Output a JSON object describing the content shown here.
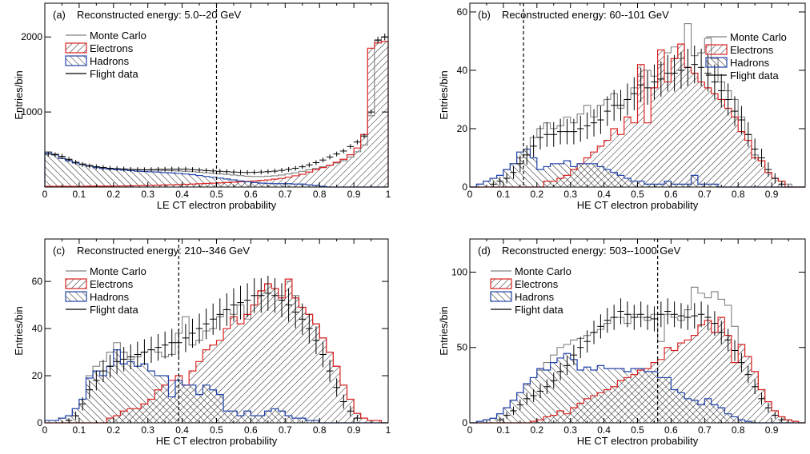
{
  "colors": {
    "mc": "#808080",
    "electrons": "#dd2222",
    "hadrons": "#2244aa",
    "flight": "#000000",
    "hatch": "#000000"
  },
  "chart_data": [
    {
      "type": "histogram",
      "panel_label": "(a)",
      "title": "Reconstructed energy: 5.0--20 GeV",
      "xlabel": "LE CT electron probability",
      "ylabel": "Entries/bin",
      "xlim": [
        0,
        1
      ],
      "ylim": [
        0,
        2450
      ],
      "xticks": [
        "0",
        "0.1",
        "0.2",
        "0.3",
        "0.4",
        "0.5",
        "0.6",
        "0.7",
        "0.8",
        "0.9",
        "1"
      ],
      "yticks": [
        {
          "value": 1000,
          "label": "1000"
        },
        {
          "value": 2000,
          "label": "2000"
        }
      ],
      "cut": 0.5,
      "legend": [
        "Monte Carlo",
        "Electrons",
        "Hadrons",
        "Flight data"
      ],
      "bin_width": 0.02,
      "series": {
        "Monte Carlo": [
          470,
          440,
          390,
          360,
          330,
          310,
          290,
          270,
          260,
          250,
          245,
          240,
          235,
          230,
          228,
          225,
          225,
          220,
          218,
          215,
          210,
          205,
          198,
          190,
          182,
          175,
          168,
          160,
          152,
          145,
          140,
          140,
          145,
          150,
          160,
          175,
          190,
          210,
          230,
          250,
          270,
          290,
          320,
          350,
          400,
          470,
          560,
          950,
          1950,
          2000
        ],
        "Electrons": [
          10,
          10,
          10,
          10,
          10,
          10,
          12,
          12,
          12,
          12,
          14,
          14,
          16,
          18,
          20,
          22,
          25,
          28,
          30,
          33,
          36,
          40,
          44,
          48,
          52,
          56,
          60,
          65,
          70,
          75,
          80,
          88,
          95,
          105,
          115,
          130,
          150,
          170,
          200,
          230,
          260,
          290,
          330,
          370,
          430,
          520,
          700,
          1850,
          1920,
          1940
        ],
        "Hadrons": [
          460,
          430,
          380,
          350,
          320,
          300,
          278,
          258,
          248,
          238,
          232,
          226,
          219,
          212,
          208,
          203,
          200,
          192,
          188,
          182,
          174,
          165,
          154,
          142,
          130,
          119,
          108,
          95,
          82,
          70,
          60,
          52,
          50,
          45,
          45,
          45,
          40,
          40,
          30,
          20,
          10,
          0,
          0,
          0,
          0,
          0,
          0,
          0,
          0,
          0
        ],
        "Flight data": [
          440,
          430,
          410,
          370,
          330,
          300,
          280,
          270,
          260,
          250,
          245,
          240,
          235,
          232,
          230,
          232,
          235,
          236,
          238,
          238,
          238,
          232,
          226,
          220,
          215,
          210,
          205,
          200,
          196,
          194,
          196,
          200,
          205,
          212,
          222,
          235,
          250,
          270,
          295,
          325,
          360,
          400,
          440,
          480,
          540,
          600,
          680,
          1000,
          1960,
          2000
        ]
      }
    },
    {
      "type": "histogram",
      "panel_label": "(b)",
      "title": "Reconstructed energy: 60--101 GeV",
      "xlabel": "HE CT electron probability",
      "ylabel": "Entries/bin",
      "xlim": [
        0,
        1
      ],
      "ylim": [
        0,
        63
      ],
      "xticks": [
        "0",
        "0.1",
        "0.2",
        "0.3",
        "0.4",
        "0.5",
        "0.6",
        "0.7",
        "0.8",
        "0.9",
        ""
      ],
      "yticks": [
        {
          "value": 0,
          "label": "0"
        },
        {
          "value": 20,
          "label": "20"
        },
        {
          "value": 40,
          "label": "40"
        },
        {
          "value": 60,
          "label": "60"
        }
      ],
      "cut": 0.16,
      "legend": [
        "Monte Carlo",
        "Electrons",
        "Hadrons",
        "Flight data"
      ],
      "bin_width": 0.02,
      "series": {
        "Monte Carlo": [
          0,
          1,
          2,
          3,
          4,
          6,
          8,
          10,
          13,
          17,
          20,
          22,
          20,
          21,
          24,
          22,
          25,
          28,
          24,
          28,
          30,
          32,
          27,
          30,
          34,
          38,
          40,
          38,
          42,
          46,
          48,
          44,
          56,
          45,
          46,
          51,
          44,
          36,
          33,
          30,
          24,
          18,
          11,
          9,
          5,
          3,
          2,
          1,
          0,
          0
        ],
        "Electrons": [
          0,
          0,
          0,
          0,
          0,
          0,
          0,
          0,
          0,
          0,
          0,
          2,
          2,
          3,
          4,
          6,
          8,
          10,
          12,
          14,
          16,
          20,
          18,
          24,
          22,
          42,
          22,
          34,
          47,
          36,
          44,
          49,
          41,
          39,
          36,
          34,
          32,
          30,
          27,
          24,
          19,
          16,
          10,
          9,
          5,
          3,
          2,
          0,
          0,
          0
        ],
        "Hadrons": [
          0,
          1,
          2,
          3,
          4,
          6,
          8,
          12,
          13,
          10,
          6,
          7,
          8,
          8,
          9,
          7,
          8,
          8,
          8,
          7,
          6,
          5,
          4,
          3,
          2,
          2,
          1,
          1,
          1,
          2,
          1,
          1,
          1,
          4,
          1,
          1,
          1,
          0,
          0,
          0,
          0,
          0,
          0,
          0,
          0,
          0,
          0,
          0,
          0,
          0
        ],
        "Flight data": [
          null,
          null,
          null,
          1,
          2,
          3,
          5,
          8,
          11,
          14,
          17,
          18,
          18,
          19,
          19,
          19,
          20,
          21,
          22,
          23,
          26,
          28,
          28,
          30,
          32,
          35,
          34,
          36,
          37,
          39,
          39,
          40,
          41,
          42,
          41,
          39,
          36,
          33,
          30,
          26,
          23,
          18,
          13,
          10,
          6,
          3,
          1,
          null,
          null,
          null
        ]
      }
    },
    {
      "type": "histogram",
      "panel_label": "(c)",
      "title": "Reconstructed energy: 210--346 GeV",
      "xlabel": "HE CT electron probability",
      "ylabel": "Entries/bin",
      "xlim": [
        0,
        1
      ],
      "ylim": [
        0,
        78
      ],
      "xticks": [
        "0",
        "0.1",
        "0.2",
        "0.3",
        "0.4",
        "0.5",
        "0.6",
        "0.7",
        "0.8",
        "0.9",
        "1"
      ],
      "yticks": [
        {
          "value": 0,
          "label": "0"
        },
        {
          "value": 20,
          "label": "20"
        },
        {
          "value": 40,
          "label": "40"
        },
        {
          "value": 60,
          "label": "60"
        }
      ],
      "cut": 0.39,
      "legend": [
        "Monte Carlo",
        "Electrons",
        "Hadrons",
        "Flight data"
      ],
      "bin_width": 0.02,
      "series": {
        "Monte Carlo": [
          1,
          1,
          2,
          3,
          6,
          10,
          20,
          24,
          26,
          30,
          34,
          30,
          27,
          28,
          30,
          31,
          30,
          28,
          29,
          38,
          45,
          33,
          35,
          39,
          40,
          45,
          48,
          46,
          50,
          44,
          50,
          56,
          59,
          57,
          54,
          60,
          54,
          49,
          46,
          42,
          36,
          30,
          24,
          16,
          10,
          4,
          2,
          1,
          1,
          0
        ],
        "Electrons": [
          0,
          0,
          0,
          0,
          0,
          0,
          0,
          0,
          0,
          2,
          3,
          5,
          6,
          6,
          8,
          10,
          14,
          16,
          18,
          20,
          16,
          22,
          26,
          31,
          33,
          35,
          40,
          45,
          42,
          46,
          50,
          56,
          59,
          57,
          53,
          61,
          53,
          49,
          46,
          42,
          36,
          30,
          24,
          16,
          10,
          4,
          2,
          1,
          1,
          0
        ],
        "Hadrons": [
          1,
          1,
          2,
          3,
          6,
          10,
          19,
          22,
          20,
          24,
          31,
          25,
          26,
          24,
          25,
          22,
          20,
          20,
          11,
          18,
          16,
          16,
          12,
          16,
          14,
          12,
          5,
          5,
          3,
          5,
          3,
          3,
          5,
          6,
          5,
          3,
          2,
          2,
          1,
          1,
          0,
          0,
          0,
          0,
          0,
          0,
          0,
          0,
          0,
          0
        ],
        "Flight data": [
          null,
          null,
          null,
          1,
          3,
          8,
          14,
          18,
          22,
          24,
          26,
          27,
          28,
          29,
          30,
          31,
          32,
          33,
          34,
          34,
          36,
          38,
          40,
          42,
          44,
          46,
          48,
          50,
          51,
          52,
          54,
          54,
          55,
          54,
          52,
          50,
          47,
          44,
          40,
          35,
          29,
          22,
          15,
          9,
          5,
          2,
          null,
          null,
          null,
          null
        ]
      }
    },
    {
      "type": "histogram",
      "panel_label": "(d)",
      "title": "Reconstructed energy: 503--1000 GeV",
      "xlabel": "HE CT electron probability",
      "ylabel": "Entries/bin",
      "xlim": [
        0,
        1
      ],
      "ylim": [
        0,
        122
      ],
      "xticks": [
        "0",
        "0.1",
        "0.2",
        "0.3",
        "0.4",
        "0.5",
        "0.6",
        "0.7",
        "0.8",
        "0.9",
        ""
      ],
      "yticks": [
        {
          "value": 0,
          "label": "0"
        },
        {
          "value": 50,
          "label": "50"
        },
        {
          "value": 100,
          "label": "100"
        }
      ],
      "cut": 0.56,
      "legend": [
        "Monte Carlo",
        "Electrons",
        "Hadrons",
        "Flight data"
      ],
      "bin_width": 0.02,
      "series": {
        "Monte Carlo": [
          0,
          1,
          2,
          3,
          6,
          10,
          15,
          20,
          25,
          30,
          35,
          40,
          45,
          50,
          52,
          55,
          56,
          58,
          60,
          62,
          66,
          70,
          70,
          66,
          72,
          70,
          68,
          72,
          54,
          72,
          70,
          68,
          75,
          90,
          86,
          83,
          87,
          82,
          78,
          64,
          52,
          44,
          34,
          22,
          14,
          8,
          4,
          2,
          1,
          0
        ],
        "Electrons": [
          0,
          0,
          0,
          0,
          0,
          0,
          0,
          0,
          0,
          1,
          2,
          4,
          5,
          8,
          6,
          10,
          13,
          16,
          18,
          20,
          22,
          24,
          28,
          30,
          32,
          35,
          36,
          40,
          42,
          50,
          48,
          53,
          55,
          58,
          65,
          68,
          60,
          70,
          58,
          40,
          52,
          44,
          34,
          22,
          14,
          8,
          4,
          2,
          1,
          0
        ],
        "Hadrons": [
          0,
          1,
          2,
          3,
          6,
          10,
          15,
          20,
          26,
          30,
          36,
          35,
          40,
          43,
          46,
          42,
          35,
          37,
          35,
          38,
          36,
          36,
          36,
          34,
          36,
          36,
          34,
          34,
          30,
          30,
          22,
          20,
          16,
          15,
          12,
          16,
          12,
          10,
          6,
          4,
          2,
          1,
          0,
          0,
          0,
          0,
          0,
          0,
          0,
          0
        ],
        "Flight data": [
          null,
          null,
          null,
          null,
          2,
          5,
          8,
          12,
          16,
          18,
          21,
          24,
          28,
          34,
          38,
          45,
          50,
          54,
          60,
          64,
          68,
          70,
          74,
          72,
          70,
          72,
          70,
          69,
          72,
          74,
          72,
          71,
          70,
          71,
          72,
          70,
          66,
          60,
          55,
          48,
          40,
          32,
          24,
          16,
          10,
          5,
          2,
          null,
          null,
          null
        ]
      }
    }
  ]
}
